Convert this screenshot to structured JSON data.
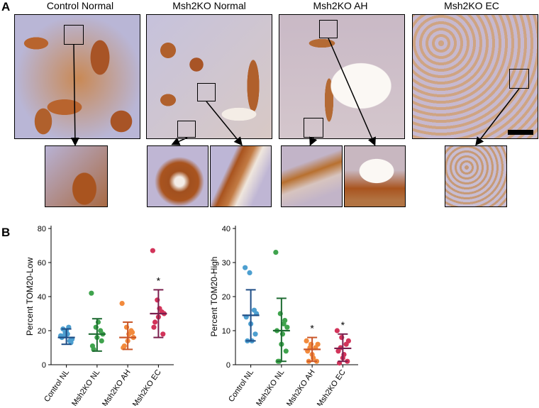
{
  "figure": {
    "panel_a_label": "A",
    "panel_b_label": "B",
    "image_titles": [
      "Control Normal",
      "Msh2KO Normal",
      "Msh2KO AH",
      "Msh2KO EC"
    ]
  },
  "chart_data": [
    {
      "type": "scatter",
      "ylabel": "Percent TOM20-Low",
      "ylim": [
        0,
        80
      ],
      "yticks": [
        0,
        20,
        40,
        60,
        80
      ],
      "categories": [
        "Control NL",
        "Msh2KO NL",
        "Msh2KO AH",
        "Msh2KO EC"
      ],
      "colors": [
        "#4d9fd0",
        "#3fa34d",
        "#f28a3c",
        "#d2345a"
      ],
      "bar_colors": [
        "#1f4e86",
        "#1e6b32",
        "#c9572a",
        "#7a1f4e"
      ],
      "series": [
        {
          "values": [
            17,
            19,
            14,
            16,
            20,
            13,
            21,
            18,
            15,
            17,
            22
          ]
        },
        {
          "values": [
            42,
            22,
            20,
            11,
            16,
            14,
            9,
            25,
            18
          ]
        },
        {
          "values": [
            36,
            22,
            20,
            10,
            14,
            19,
            11,
            18,
            16
          ]
        },
        {
          "values": [
            67,
            38,
            31,
            22,
            28,
            18,
            25,
            33,
            30
          ]
        }
      ],
      "mean": [
        16,
        18,
        16,
        30
      ],
      "sd_low": [
        12,
        8,
        9,
        16
      ],
      "sd_high": [
        21,
        27,
        25,
        44
      ],
      "significance": [
        "",
        "",
        "",
        "*"
      ]
    },
    {
      "type": "scatter",
      "ylabel": "Percent TOM20-High",
      "ylim": [
        0,
        40
      ],
      "yticks": [
        0,
        10,
        20,
        30,
        40
      ],
      "categories": [
        "Control NL",
        "Msh2KO NL",
        "Msh2KO AH",
        "Msh2KO EC"
      ],
      "colors": [
        "#4d9fd0",
        "#3fa34d",
        "#f28a3c",
        "#d2345a"
      ],
      "bar_colors": [
        "#1f4e86",
        "#1e6b32",
        "#c9572a",
        "#7a1f4e"
      ],
      "series": [
        {
          "values": [
            28.5,
            27,
            16,
            14,
            12,
            9,
            7,
            7,
            15
          ]
        },
        {
          "values": [
            33,
            15,
            13,
            10,
            6,
            4,
            1,
            9,
            11,
            1,
            12
          ]
        },
        {
          "values": [
            7,
            6,
            5,
            4,
            3,
            1,
            1,
            2,
            6,
            5
          ]
        },
        {
          "values": [
            10,
            8,
            6,
            4,
            2,
            1,
            0.5,
            3,
            7,
            5
          ]
        }
      ],
      "mean": [
        14.5,
        10,
        4.5,
        4.8
      ],
      "sd_low": [
        7,
        1,
        1,
        1
      ],
      "sd_high": [
        22,
        19.5,
        8,
        9
      ],
      "significance": [
        "",
        "",
        "*",
        "*"
      ]
    }
  ]
}
